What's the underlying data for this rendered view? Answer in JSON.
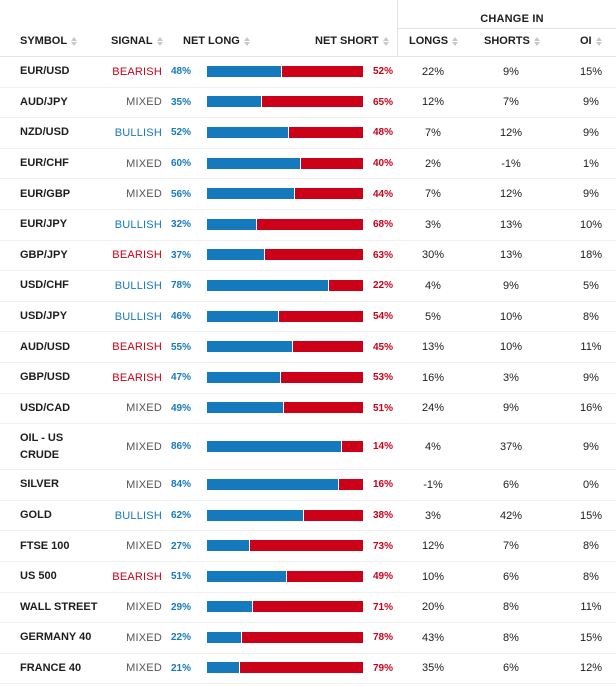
{
  "header": {
    "group_label": "CHANGE IN",
    "columns": {
      "symbol": "SYMBOL",
      "signal": "SIGNAL",
      "net_long": "NET LONG",
      "net_short": "NET SHORT",
      "longs": "LONGS",
      "shorts": "SHORTS",
      "oi": "OI"
    }
  },
  "colors": {
    "long": "#1579be",
    "short": "#cc0018",
    "mixed": "#555555"
  },
  "rows": [
    {
      "symbol": "EUR/USD",
      "signal": "BEARISH",
      "net_long": "48%",
      "net_short": "52%",
      "long_frac": 0.48,
      "longs": "22%",
      "shorts": "9%",
      "oi": "15%"
    },
    {
      "symbol": "AUD/JPY",
      "signal": "MIXED",
      "net_long": "35%",
      "net_short": "65%",
      "long_frac": 0.35,
      "longs": "12%",
      "shorts": "7%",
      "oi": "9%"
    },
    {
      "symbol": "NZD/USD",
      "signal": "BULLISH",
      "net_long": "52%",
      "net_short": "48%",
      "long_frac": 0.52,
      "longs": "7%",
      "shorts": "12%",
      "oi": "9%"
    },
    {
      "symbol": "EUR/CHF",
      "signal": "MIXED",
      "net_long": "60%",
      "net_short": "40%",
      "long_frac": 0.6,
      "longs": "2%",
      "shorts": "-1%",
      "oi": "1%"
    },
    {
      "symbol": "EUR/GBP",
      "signal": "MIXED",
      "net_long": "56%",
      "net_short": "44%",
      "long_frac": 0.56,
      "longs": "7%",
      "shorts": "12%",
      "oi": "9%"
    },
    {
      "symbol": "EUR/JPY",
      "signal": "BULLISH",
      "net_long": "32%",
      "net_short": "68%",
      "long_frac": 0.32,
      "longs": "3%",
      "shorts": "13%",
      "oi": "10%"
    },
    {
      "symbol": "GBP/JPY",
      "signal": "BEARISH",
      "net_long": "37%",
      "net_short": "63%",
      "long_frac": 0.37,
      "longs": "30%",
      "shorts": "13%",
      "oi": "18%"
    },
    {
      "symbol": "USD/CHF",
      "signal": "BULLISH",
      "net_long": "78%",
      "net_short": "22%",
      "long_frac": 0.78,
      "longs": "4%",
      "shorts": "9%",
      "oi": "5%"
    },
    {
      "symbol": "USD/JPY",
      "signal": "BULLISH",
      "net_long": "46%",
      "net_short": "54%",
      "long_frac": 0.46,
      "longs": "5%",
      "shorts": "10%",
      "oi": "8%"
    },
    {
      "symbol": "AUD/USD",
      "signal": "BEARISH",
      "net_long": "55%",
      "net_short": "45%",
      "long_frac": 0.55,
      "longs": "13%",
      "shorts": "10%",
      "oi": "11%"
    },
    {
      "symbol": "GBP/USD",
      "signal": "BEARISH",
      "net_long": "47%",
      "net_short": "53%",
      "long_frac": 0.47,
      "longs": "16%",
      "shorts": "3%",
      "oi": "9%"
    },
    {
      "symbol": "USD/CAD",
      "signal": "MIXED",
      "net_long": "49%",
      "net_short": "51%",
      "long_frac": 0.49,
      "longs": "24%",
      "shorts": "9%",
      "oi": "16%"
    },
    {
      "symbol": "OIL - US CRUDE",
      "signal": "MIXED",
      "net_long": "86%",
      "net_short": "14%",
      "long_frac": 0.86,
      "longs": "4%",
      "shorts": "37%",
      "oi": "9%"
    },
    {
      "symbol": "SILVER",
      "signal": "MIXED",
      "net_long": "84%",
      "net_short": "16%",
      "long_frac": 0.84,
      "longs": "-1%",
      "shorts": "6%",
      "oi": "0%"
    },
    {
      "symbol": "GOLD",
      "signal": "BULLISH",
      "net_long": "62%",
      "net_short": "38%",
      "long_frac": 0.62,
      "longs": "3%",
      "shorts": "42%",
      "oi": "15%"
    },
    {
      "symbol": "FTSE 100",
      "signal": "MIXED",
      "net_long": "27%",
      "net_short": "73%",
      "long_frac": 0.27,
      "longs": "12%",
      "shorts": "7%",
      "oi": "8%"
    },
    {
      "symbol": "US 500",
      "signal": "BEARISH",
      "net_long": "51%",
      "net_short": "49%",
      "long_frac": 0.51,
      "longs": "10%",
      "shorts": "6%",
      "oi": "8%"
    },
    {
      "symbol": "WALL STREET",
      "signal": "MIXED",
      "net_long": "29%",
      "net_short": "71%",
      "long_frac": 0.29,
      "longs": "20%",
      "shorts": "8%",
      "oi": "11%"
    },
    {
      "symbol": "GERMANY 40",
      "signal": "MIXED",
      "net_long": "22%",
      "net_short": "78%",
      "long_frac": 0.22,
      "longs": "43%",
      "shorts": "8%",
      "oi": "15%"
    },
    {
      "symbol": "FRANCE 40",
      "signal": "MIXED",
      "net_long": "21%",
      "net_short": "79%",
      "long_frac": 0.21,
      "longs": "35%",
      "shorts": "6%",
      "oi": "12%"
    }
  ]
}
